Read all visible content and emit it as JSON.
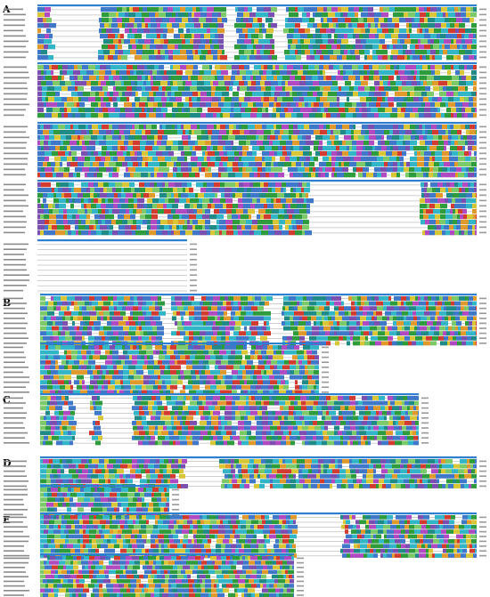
{
  "figure": {
    "panels": [
      {
        "label": "A",
        "rows": 10,
        "blocks": 5
      },
      {
        "label": "B",
        "rows": 10,
        "blocks": 2
      },
      {
        "label": "C",
        "rows": 10,
        "blocks": 1
      },
      {
        "label": "D",
        "rows": 6,
        "blocks": 2
      },
      {
        "label": "E",
        "rows": 9,
        "blocks": 2
      }
    ],
    "residue_colors": {
      "hydrophobic": "#3f78c8",
      "cyan": "#33b5c8",
      "green": "#2e9b3c",
      "lightgreen": "#7cc96a",
      "red": "#d23b2f",
      "magenta": "#b04ac0",
      "purple": "#7a4fb0",
      "orange": "#e09a2b",
      "yellow": "#d8c637",
      "teal": "#1f8a86",
      "gray": "#c9c9c9"
    },
    "consensus_color": "#2f7fd0"
  }
}
